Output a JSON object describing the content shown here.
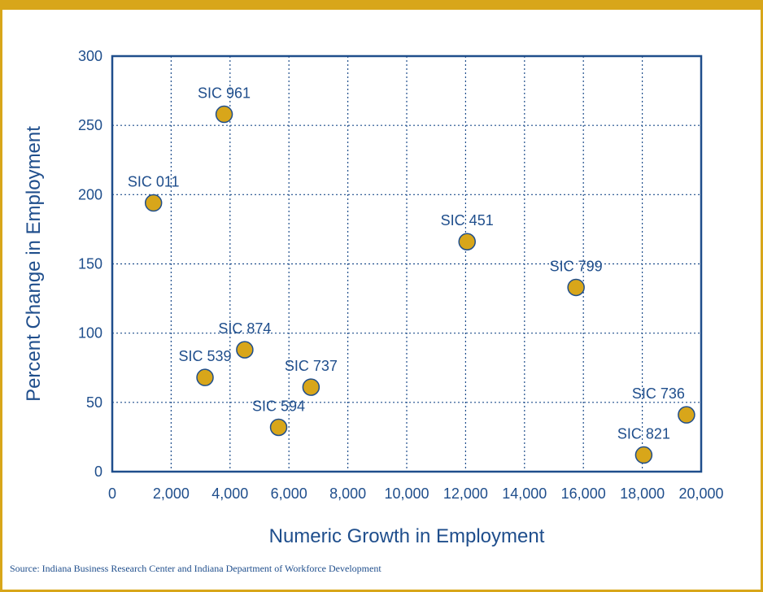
{
  "chart_data": {
    "type": "scatter",
    "xlabel": "Numeric Growth in Employment",
    "ylabel": "Percent Change in Employment",
    "xlim": [
      0,
      20000
    ],
    "ylim": [
      0,
      300
    ],
    "xticks": [
      0,
      2000,
      4000,
      6000,
      8000,
      10000,
      12000,
      14000,
      16000,
      18000,
      20000
    ],
    "xtick_labels": [
      "0",
      "2,000",
      "4,000",
      "6,000",
      "8,000",
      "10,000",
      "12,000",
      "14,000",
      "16,000",
      "18,000",
      "20,000"
    ],
    "yticks": [
      0,
      50,
      100,
      150,
      200,
      250,
      300
    ],
    "ytick_labels": [
      "0",
      "50",
      "100",
      "150",
      "200",
      "250",
      "300"
    ],
    "grid": true,
    "points": [
      {
        "label": "SIC 961",
        "x": 3800,
        "y": 258
      },
      {
        "label": "SIC 011",
        "x": 1400,
        "y": 194
      },
      {
        "label": "SIC 451",
        "x": 12050,
        "y": 166
      },
      {
        "label": "SIC 799",
        "x": 15750,
        "y": 133
      },
      {
        "label": "SIC 874",
        "x": 4500,
        "y": 88
      },
      {
        "label": "SIC 539",
        "x": 3150,
        "y": 68
      },
      {
        "label": "SIC 737",
        "x": 6750,
        "y": 61
      },
      {
        "label": "SIC 594",
        "x": 5650,
        "y": 32
      },
      {
        "label": "SIC 736",
        "x": 19500,
        "y": 41
      },
      {
        "label": "SIC 821",
        "x": 18050,
        "y": 12
      }
    ],
    "colors": {
      "axis": "#1f4e8c",
      "marker_fill": "#d8a61a",
      "marker_stroke": "#1f4e8c",
      "text": "#1f4e8c",
      "grid": "#1f4e8c"
    }
  },
  "footer": {
    "source": "Source: Indiana Business Research Center and Indiana Department of Workforce Development"
  }
}
